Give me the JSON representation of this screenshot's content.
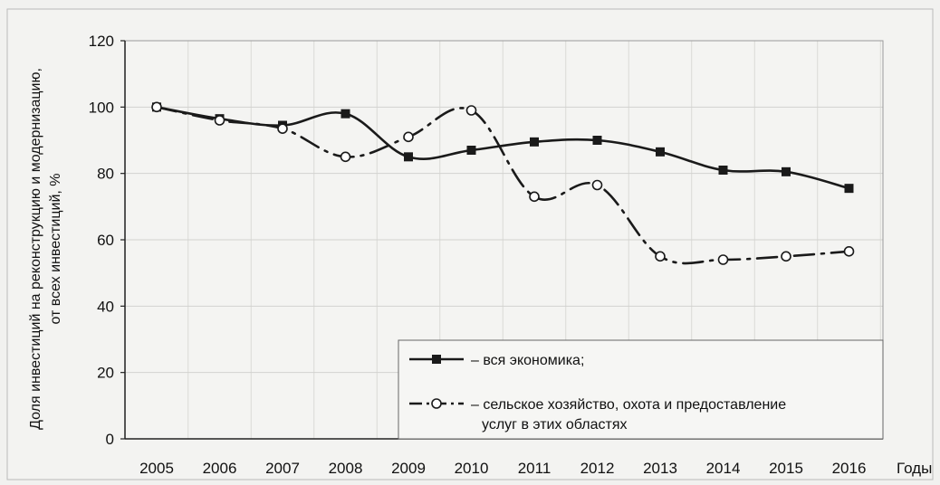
{
  "chart_data": {
    "type": "line",
    "title": "",
    "xlabel": "Годы",
    "ylabel": [
      "Доля инвестиций на реконструкцию и модернизацию,",
      "от всех инвестиций,  %"
    ],
    "categories": [
      "2005",
      "2006",
      "2007",
      "2008",
      "2009",
      "2010",
      "2011",
      "2012",
      "2013",
      "2014",
      "2015",
      "2016"
    ],
    "ylim": [
      0,
      120
    ],
    "yticks": [
      0,
      20,
      40,
      60,
      80,
      100,
      120
    ],
    "grid": "vertical and horizontal",
    "legend_position": "bottom-right",
    "series": [
      {
        "name": "– вся экономика;",
        "style": "solid",
        "marker": "square-filled",
        "color": "#1a1a1a",
        "values": [
          100,
          96.5,
          94.5,
          98,
          85,
          87,
          89.5,
          90,
          86.5,
          81,
          80.5,
          75.5
        ]
      },
      {
        "name": "– сельское хозяйство, охота и предоставление услуг в этих областях",
        "name_lines": [
          "– сельское хозяйство, охота и предоставление",
          "услуг в этих областях"
        ],
        "style": "dash-dot",
        "marker": "circle-open",
        "color": "#1a1a1a",
        "values": [
          100,
          96,
          93.5,
          85,
          91,
          99,
          73,
          76.5,
          55,
          54,
          55,
          56.5
        ]
      }
    ]
  }
}
